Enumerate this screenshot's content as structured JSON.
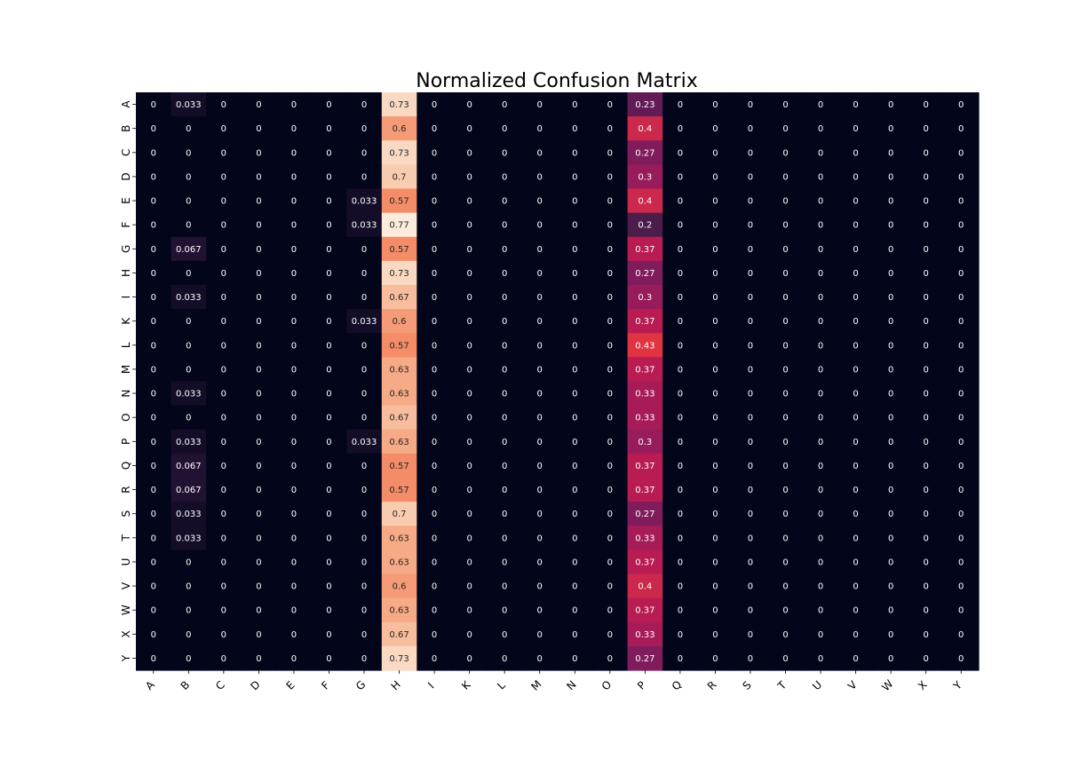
{
  "chart_data": {
    "type": "heatmap",
    "title": "Normalized Confusion Matrix",
    "xlabel": "",
    "ylabel": "",
    "x_labels": [
      "A",
      "B",
      "C",
      "D",
      "E",
      "F",
      "G",
      "H",
      "I",
      "K",
      "L",
      "M",
      "N",
      "O",
      "P",
      "Q",
      "R",
      "S",
      "T",
      "U",
      "V",
      "W",
      "X",
      "Y"
    ],
    "y_labels": [
      "A",
      "B",
      "C",
      "D",
      "E",
      "F",
      "G",
      "H",
      "I",
      "K",
      "L",
      "M",
      "N",
      "O",
      "P",
      "Q",
      "R",
      "S",
      "T",
      "U",
      "V",
      "W",
      "X",
      "Y"
    ],
    "value_range": [
      0,
      0.77
    ],
    "colormap": "rocket",
    "values": [
      [
        "0",
        "0.033",
        "0",
        "0",
        "0",
        "0",
        "0",
        "0.73",
        "0",
        "0",
        "0",
        "0",
        "0",
        "0",
        "0.23",
        "0",
        "0",
        "0",
        "0",
        "0",
        "0",
        "0",
        "0",
        "0"
      ],
      [
        "0",
        "0",
        "0",
        "0",
        "0",
        "0",
        "0",
        "0.6",
        "0",
        "0",
        "0",
        "0",
        "0",
        "0",
        "0.4",
        "0",
        "0",
        "0",
        "0",
        "0",
        "0",
        "0",
        "0",
        "0"
      ],
      [
        "0",
        "0",
        "0",
        "0",
        "0",
        "0",
        "0",
        "0.73",
        "0",
        "0",
        "0",
        "0",
        "0",
        "0",
        "0.27",
        "0",
        "0",
        "0",
        "0",
        "0",
        "0",
        "0",
        "0",
        "0"
      ],
      [
        "0",
        "0",
        "0",
        "0",
        "0",
        "0",
        "0",
        "0.7",
        "0",
        "0",
        "0",
        "0",
        "0",
        "0",
        "0.3",
        "0",
        "0",
        "0",
        "0",
        "0",
        "0",
        "0",
        "0",
        "0"
      ],
      [
        "0",
        "0",
        "0",
        "0",
        "0",
        "0",
        "0.033",
        "0.57",
        "0",
        "0",
        "0",
        "0",
        "0",
        "0",
        "0.4",
        "0",
        "0",
        "0",
        "0",
        "0",
        "0",
        "0",
        "0",
        "0"
      ],
      [
        "0",
        "0",
        "0",
        "0",
        "0",
        "0",
        "0.033",
        "0.77",
        "0",
        "0",
        "0",
        "0",
        "0",
        "0",
        "0.2",
        "0",
        "0",
        "0",
        "0",
        "0",
        "0",
        "0",
        "0",
        "0"
      ],
      [
        "0",
        "0.067",
        "0",
        "0",
        "0",
        "0",
        "0",
        "0.57",
        "0",
        "0",
        "0",
        "0",
        "0",
        "0",
        "0.37",
        "0",
        "0",
        "0",
        "0",
        "0",
        "0",
        "0",
        "0",
        "0"
      ],
      [
        "0",
        "0",
        "0",
        "0",
        "0",
        "0",
        "0",
        "0.73",
        "0",
        "0",
        "0",
        "0",
        "0",
        "0",
        "0.27",
        "0",
        "0",
        "0",
        "0",
        "0",
        "0",
        "0",
        "0",
        "0"
      ],
      [
        "0",
        "0.033",
        "0",
        "0",
        "0",
        "0",
        "0",
        "0.67",
        "0",
        "0",
        "0",
        "0",
        "0",
        "0",
        "0.3",
        "0",
        "0",
        "0",
        "0",
        "0",
        "0",
        "0",
        "0",
        "0"
      ],
      [
        "0",
        "0",
        "0",
        "0",
        "0",
        "0",
        "0.033",
        "0.6",
        "0",
        "0",
        "0",
        "0",
        "0",
        "0",
        "0.37",
        "0",
        "0",
        "0",
        "0",
        "0",
        "0",
        "0",
        "0",
        "0"
      ],
      [
        "0",
        "0",
        "0",
        "0",
        "0",
        "0",
        "0",
        "0.57",
        "0",
        "0",
        "0",
        "0",
        "0",
        "0",
        "0.43",
        "0",
        "0",
        "0",
        "0",
        "0",
        "0",
        "0",
        "0",
        "0"
      ],
      [
        "0",
        "0",
        "0",
        "0",
        "0",
        "0",
        "0",
        "0.63",
        "0",
        "0",
        "0",
        "0",
        "0",
        "0",
        "0.37",
        "0",
        "0",
        "0",
        "0",
        "0",
        "0",
        "0",
        "0",
        "0"
      ],
      [
        "0",
        "0.033",
        "0",
        "0",
        "0",
        "0",
        "0",
        "0.63",
        "0",
        "0",
        "0",
        "0",
        "0",
        "0",
        "0.33",
        "0",
        "0",
        "0",
        "0",
        "0",
        "0",
        "0",
        "0",
        "0"
      ],
      [
        "0",
        "0",
        "0",
        "0",
        "0",
        "0",
        "0",
        "0.67",
        "0",
        "0",
        "0",
        "0",
        "0",
        "0",
        "0.33",
        "0",
        "0",
        "0",
        "0",
        "0",
        "0",
        "0",
        "0",
        "0"
      ],
      [
        "0",
        "0.033",
        "0",
        "0",
        "0",
        "0",
        "0.033",
        "0.63",
        "0",
        "0",
        "0",
        "0",
        "0",
        "0",
        "0.3",
        "0",
        "0",
        "0",
        "0",
        "0",
        "0",
        "0",
        "0",
        "0"
      ],
      [
        "0",
        "0.067",
        "0",
        "0",
        "0",
        "0",
        "0",
        "0.57",
        "0",
        "0",
        "0",
        "0",
        "0",
        "0",
        "0.37",
        "0",
        "0",
        "0",
        "0",
        "0",
        "0",
        "0",
        "0",
        "0"
      ],
      [
        "0",
        "0.067",
        "0",
        "0",
        "0",
        "0",
        "0",
        "0.57",
        "0",
        "0",
        "0",
        "0",
        "0",
        "0",
        "0.37",
        "0",
        "0",
        "0",
        "0",
        "0",
        "0",
        "0",
        "0",
        "0"
      ],
      [
        "0",
        "0.033",
        "0",
        "0",
        "0",
        "0",
        "0",
        "0.7",
        "0",
        "0",
        "0",
        "0",
        "0",
        "0",
        "0.27",
        "0",
        "0",
        "0",
        "0",
        "0",
        "0",
        "0",
        "0",
        "0"
      ],
      [
        "0",
        "0.033",
        "0",
        "0",
        "0",
        "0",
        "0",
        "0.63",
        "0",
        "0",
        "0",
        "0",
        "0",
        "0",
        "0.33",
        "0",
        "0",
        "0",
        "0",
        "0",
        "0",
        "0",
        "0",
        "0"
      ],
      [
        "0",
        "0",
        "0",
        "0",
        "0",
        "0",
        "0",
        "0.63",
        "0",
        "0",
        "0",
        "0",
        "0",
        "0",
        "0.37",
        "0",
        "0",
        "0",
        "0",
        "0",
        "0",
        "0",
        "0",
        "0"
      ],
      [
        "0",
        "0",
        "0",
        "0",
        "0",
        "0",
        "0",
        "0.6",
        "0",
        "0",
        "0",
        "0",
        "0",
        "0",
        "0.4",
        "0",
        "0",
        "0",
        "0",
        "0",
        "0",
        "0",
        "0",
        "0"
      ],
      [
        "0",
        "0",
        "0",
        "0",
        "0",
        "0",
        "0",
        "0.63",
        "0",
        "0",
        "0",
        "0",
        "0",
        "0",
        "0.37",
        "0",
        "0",
        "0",
        "0",
        "0",
        "0",
        "0",
        "0",
        "0"
      ],
      [
        "0",
        "0",
        "0",
        "0",
        "0",
        "0",
        "0",
        "0.67",
        "0",
        "0",
        "0",
        "0",
        "0",
        "0",
        "0.33",
        "0",
        "0",
        "0",
        "0",
        "0",
        "0",
        "0",
        "0",
        "0"
      ],
      [
        "0",
        "0",
        "0",
        "0",
        "0",
        "0",
        "0",
        "0.73",
        "0",
        "0",
        "0",
        "0",
        "0",
        "0",
        "0.27",
        "0",
        "0",
        "0",
        "0",
        "0",
        "0",
        "0",
        "0",
        "0"
      ]
    ]
  }
}
